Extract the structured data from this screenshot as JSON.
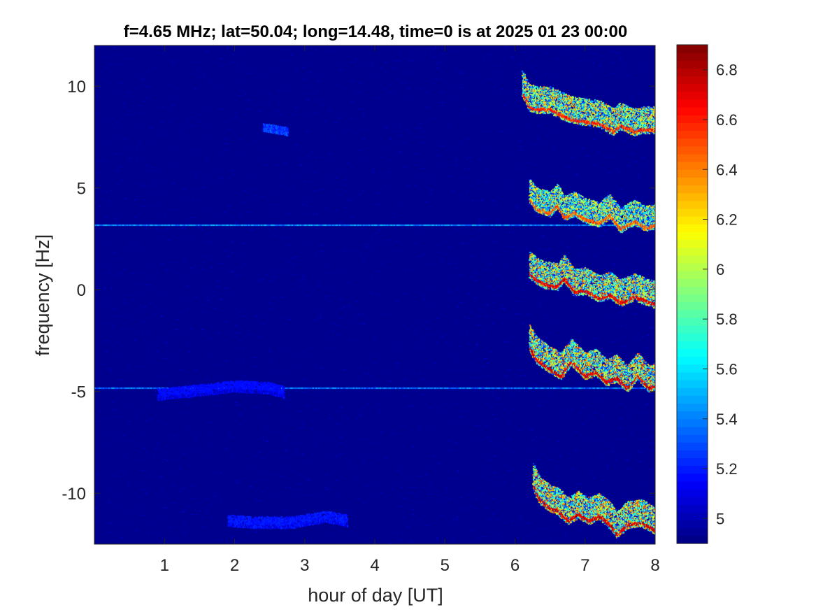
{
  "chart_data": {
    "type": "heatmap",
    "title": "f=4.65 MHz;  lat=50.04; long=14.48, time=0 is at 2025 01 23 00:00",
    "xlabel": "hour of day [UT]",
    "ylabel": "frequency [Hz]",
    "xlim": [
      0,
      8
    ],
    "ylim": [
      -12.5,
      12
    ],
    "x_ticks": [
      1,
      2,
      3,
      4,
      5,
      6,
      7,
      8
    ],
    "x_tick_labels": [
      "1",
      "2",
      "3",
      "4",
      "5",
      "6",
      "7",
      "8"
    ],
    "y_ticks": [
      -10,
      -5,
      0,
      5,
      10
    ],
    "y_tick_labels": [
      "-10",
      "-5",
      "0",
      "5",
      "10"
    ],
    "colorbar": {
      "colormap": "jet",
      "range": [
        4.9,
        6.9
      ],
      "ticks": [
        5,
        5.2,
        5.4,
        5.6,
        5.8,
        6,
        6.2,
        6.4,
        6.6,
        6.8
      ],
      "tick_labels": [
        "5",
        "5.2",
        "5.4",
        "5.6",
        "5.8",
        "6",
        "6.2",
        "6.4",
        "6.6",
        "6.8"
      ]
    },
    "background_color": "#00008f",
    "constant_lines": [
      {
        "frequency": 3.2,
        "x_range": [
          0,
          8
        ],
        "level": 5.3
      },
      {
        "frequency": -4.8,
        "x_range": [
          0,
          8
        ],
        "level": 5.25
      }
    ],
    "traces": [
      {
        "points": [
          [
            6.1,
            9.7
          ],
          [
            6.2,
            9.0
          ],
          [
            6.3,
            8.9
          ],
          [
            6.5,
            8.9
          ],
          [
            6.6,
            8.7
          ],
          [
            6.8,
            8.4
          ],
          [
            7.0,
            8.3
          ],
          [
            7.2,
            8.2
          ],
          [
            7.4,
            7.8
          ],
          [
            7.5,
            8.1
          ],
          [
            7.7,
            7.8
          ],
          [
            7.8,
            7.9
          ],
          [
            8.0,
            7.9
          ]
        ],
        "level": 6.7,
        "spread": 0.6
      },
      {
        "points": [
          [
            6.2,
            4.5
          ],
          [
            6.3,
            4.0
          ],
          [
            6.5,
            3.8
          ],
          [
            6.6,
            4.2
          ],
          [
            6.7,
            3.6
          ],
          [
            6.85,
            3.8
          ],
          [
            7.0,
            3.5
          ],
          [
            7.2,
            3.3
          ],
          [
            7.35,
            3.7
          ],
          [
            7.5,
            3.0
          ],
          [
            7.7,
            3.4
          ],
          [
            7.85,
            3.1
          ],
          [
            8.0,
            3.2
          ]
        ],
        "level": 6.6,
        "spread": 0.55
      },
      {
        "points": [
          [
            6.2,
            0.8
          ],
          [
            6.3,
            0.5
          ],
          [
            6.4,
            0.3
          ],
          [
            6.6,
            0.2
          ],
          [
            6.7,
            0.6
          ],
          [
            6.85,
            -0.1
          ],
          [
            7.0,
            0.0
          ],
          [
            7.2,
            -0.4
          ],
          [
            7.35,
            -0.2
          ],
          [
            7.5,
            -0.6
          ],
          [
            7.7,
            -0.3
          ],
          [
            7.85,
            -0.5
          ],
          [
            8.0,
            -0.7
          ]
        ],
        "level": 6.8,
        "spread": 0.6
      },
      {
        "points": [
          [
            6.2,
            -2.8
          ],
          [
            6.3,
            -3.4
          ],
          [
            6.5,
            -3.9
          ],
          [
            6.65,
            -4.2
          ],
          [
            6.8,
            -3.5
          ],
          [
            7.0,
            -4.2
          ],
          [
            7.15,
            -4.0
          ],
          [
            7.3,
            -4.5
          ],
          [
            7.45,
            -4.3
          ],
          [
            7.6,
            -4.8
          ],
          [
            7.75,
            -4.2
          ],
          [
            7.9,
            -4.8
          ],
          [
            8.0,
            -4.7
          ]
        ],
        "level": 6.85,
        "spread": 0.6
      },
      {
        "points": [
          [
            6.25,
            -9.6
          ],
          [
            6.35,
            -10.3
          ],
          [
            6.5,
            -10.7
          ],
          [
            6.6,
            -10.8
          ],
          [
            6.75,
            -11.3
          ],
          [
            6.9,
            -11.0
          ],
          [
            7.05,
            -11.3
          ],
          [
            7.2,
            -11.1
          ],
          [
            7.35,
            -11.5
          ],
          [
            7.45,
            -12.0
          ],
          [
            7.6,
            -11.5
          ],
          [
            7.8,
            -11.4
          ],
          [
            8.0,
            -11.8
          ]
        ],
        "level": 6.85,
        "spread": 0.6
      },
      {
        "points": [
          [
            2.4,
            7.9
          ],
          [
            2.6,
            7.8
          ],
          [
            2.75,
            7.7
          ]
        ],
        "level": 5.4,
        "spread": 0.15
      },
      {
        "points": [
          [
            0.9,
            -5.3
          ],
          [
            1.5,
            -5.1
          ],
          [
            2.0,
            -4.9
          ],
          [
            2.5,
            -5.0
          ],
          [
            2.7,
            -5.2
          ]
        ],
        "level": 5.2,
        "spread": 0.25
      },
      {
        "points": [
          [
            1.9,
            -11.5
          ],
          [
            2.3,
            -11.6
          ],
          [
            2.8,
            -11.6
          ],
          [
            3.3,
            -11.3
          ],
          [
            3.6,
            -11.5
          ]
        ],
        "level": 5.25,
        "spread": 0.25
      }
    ]
  }
}
